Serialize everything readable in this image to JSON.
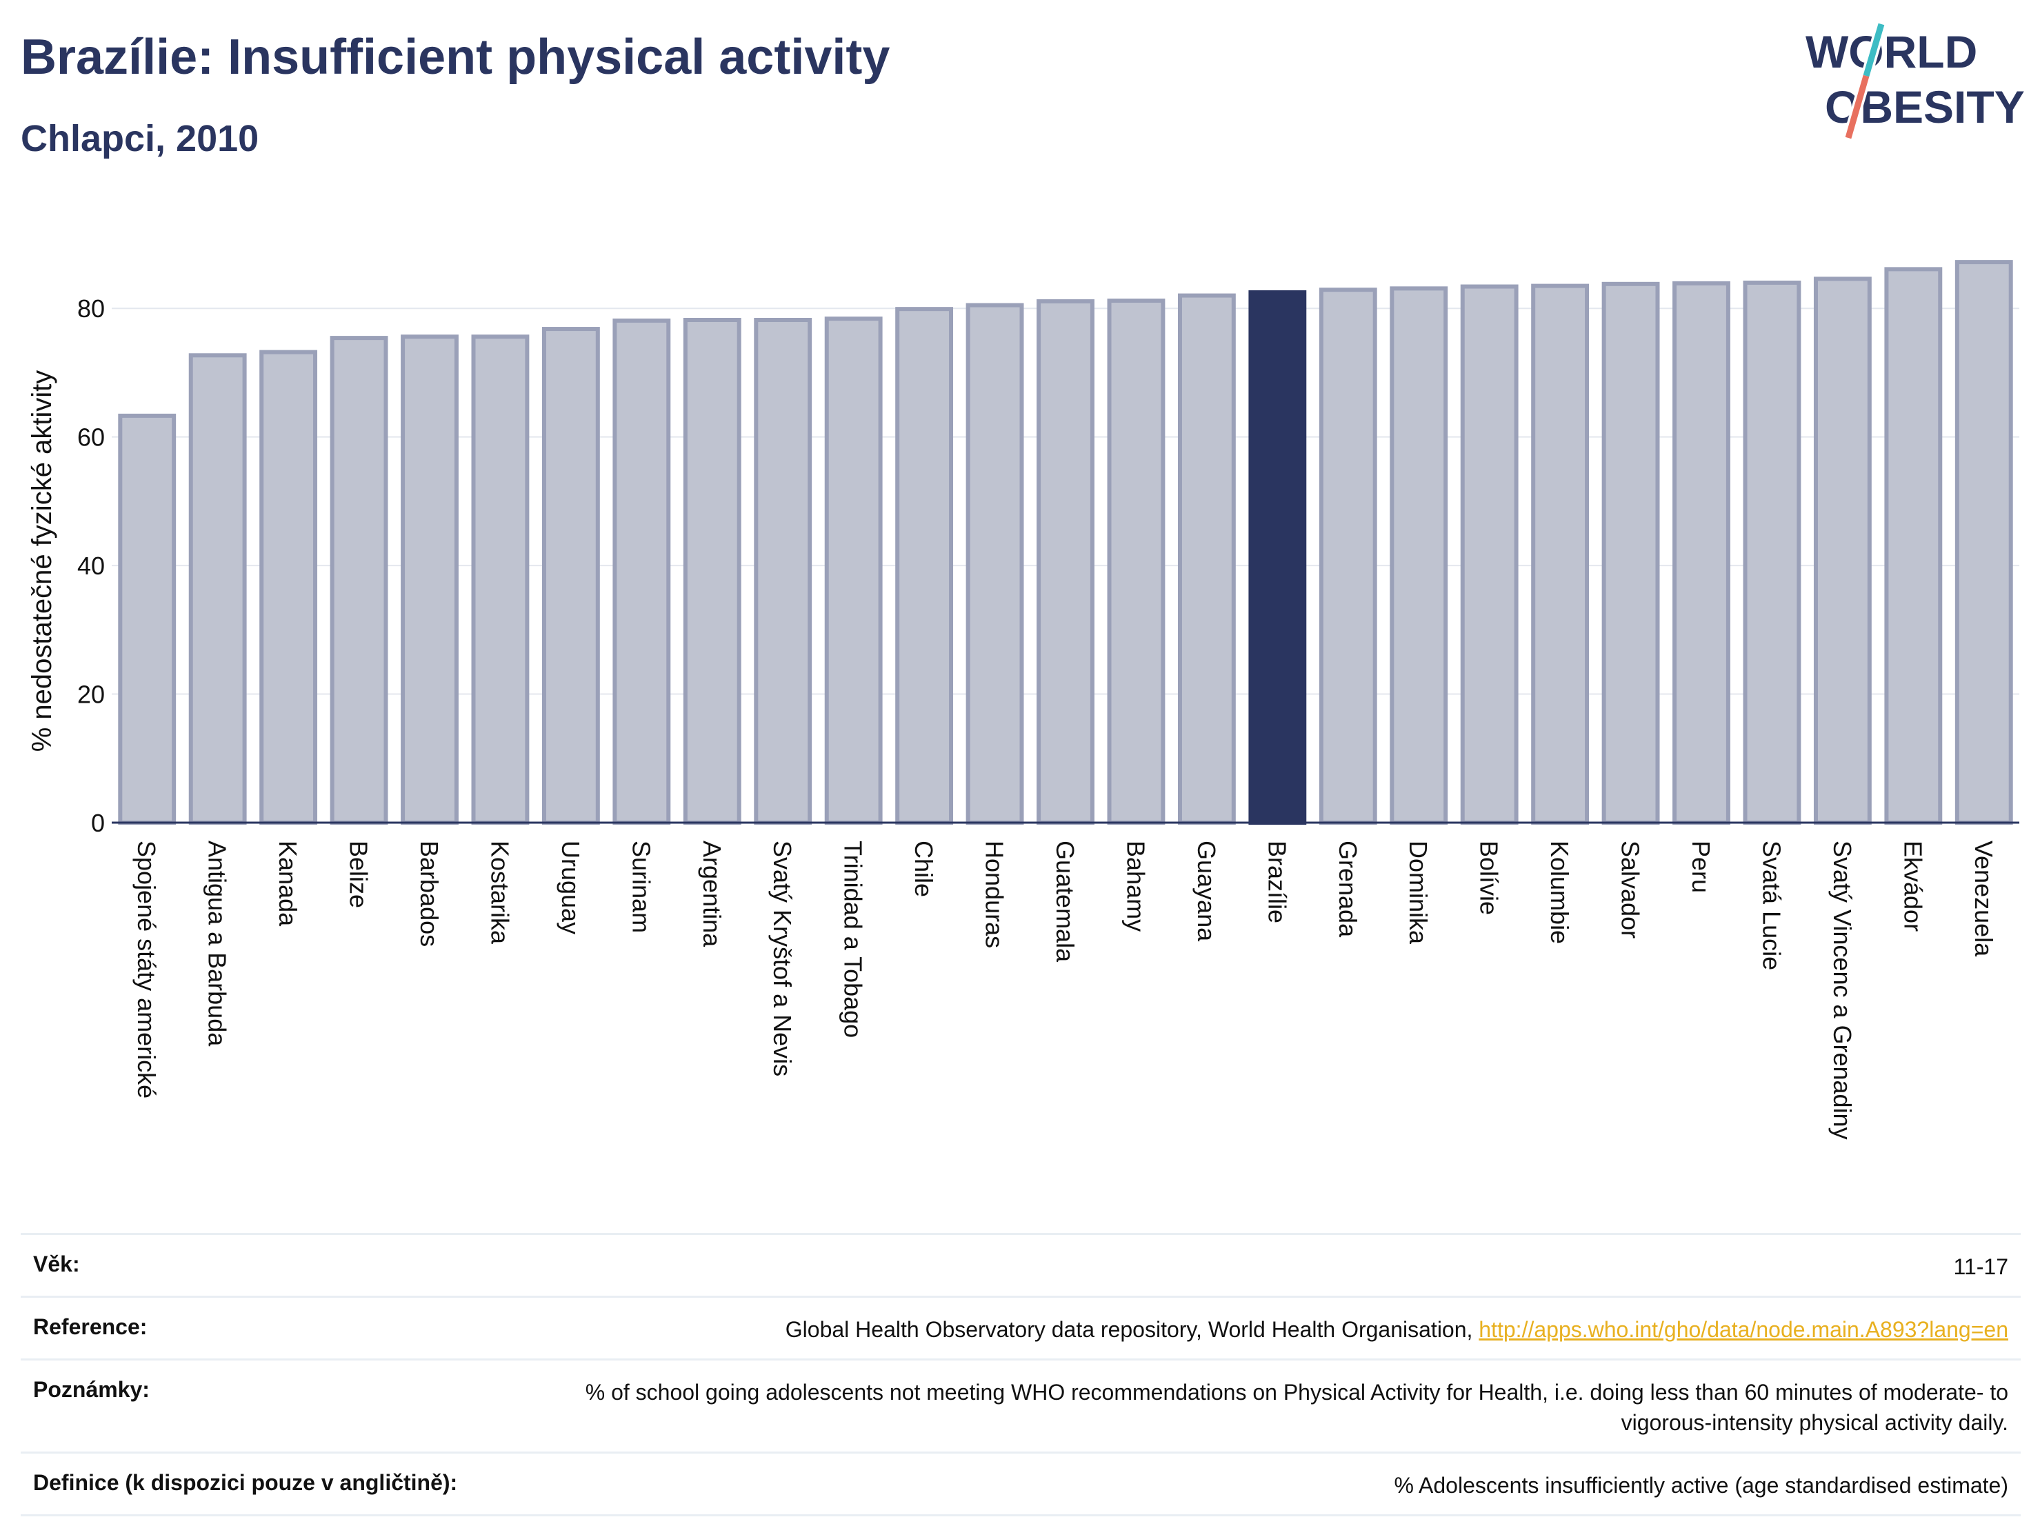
{
  "header": {
    "title": "Brazílie: Insufficient physical activity",
    "subtitle": "Chlapci, 2010"
  },
  "logo": {
    "line1": "WORLD",
    "line2": "OBESITY"
  },
  "colors": {
    "bar": "#bfc3d0",
    "bar_stroke": "#9aa0b8",
    "highlight": "#2a3560",
    "grid": "#e4e7ee",
    "text": "#2a3560",
    "link": "#e8b020"
  },
  "chart_data": {
    "type": "bar",
    "title": "Brazílie: Insufficient physical activity",
    "subtitle": "Chlapci, 2010",
    "xlabel": "",
    "ylabel": "% nedostatečné fyzické aktivity",
    "ylim": [
      0,
      90
    ],
    "yticks": [
      0,
      20,
      40,
      60,
      80
    ],
    "grid": true,
    "highlight": "Brazílie",
    "categories": [
      "Spojené státy americké",
      "Antigua a Barbuda",
      "Kanada",
      "Belize",
      "Barbados",
      "Kostarika",
      "Uruguay",
      "Surinam",
      "Argentina",
      "Svatý Kryštof a Nevis",
      "Trinidad a Tobago",
      "Chile",
      "Honduras",
      "Guatemala",
      "Bahamy",
      "Guayana",
      "Brazílie",
      "Grenada",
      "Dominika",
      "Bolívie",
      "Kolumbie",
      "Salvador",
      "Peru",
      "Svatá Lucie",
      "Svatý Vincenc a Grenadiny",
      "Ekvádor",
      "Venezuela"
    ],
    "values": [
      63.3,
      72.7,
      73.2,
      75.4,
      75.6,
      75.6,
      76.8,
      78.1,
      78.2,
      78.2,
      78.4,
      79.9,
      80.5,
      81.1,
      81.2,
      82.0,
      82.5,
      82.9,
      83.1,
      83.4,
      83.5,
      83.8,
      83.9,
      84.0,
      84.6,
      86.1,
      87.2
    ]
  },
  "info": {
    "age_label": "Věk:",
    "age_value": "11-17",
    "reference_label": "Reference:",
    "reference_text": "Global Health Observatory data repository, World Health Organisation,",
    "reference_link": "http://apps.who.int/gho/data/node.main.A893?lang=en",
    "notes_label": "Poznámky:",
    "notes_value": "% of school going adolescents not meeting WHO recommendations on Physical Activity for Health, i.e. doing less than 60 minutes of moderate- to vigorous-intensity physical activity daily.",
    "definition_label": "Definice (k dispozici pouze v angličtině):",
    "definition_value": "% Adolescents insufficiently active (age standardised estimate)"
  }
}
